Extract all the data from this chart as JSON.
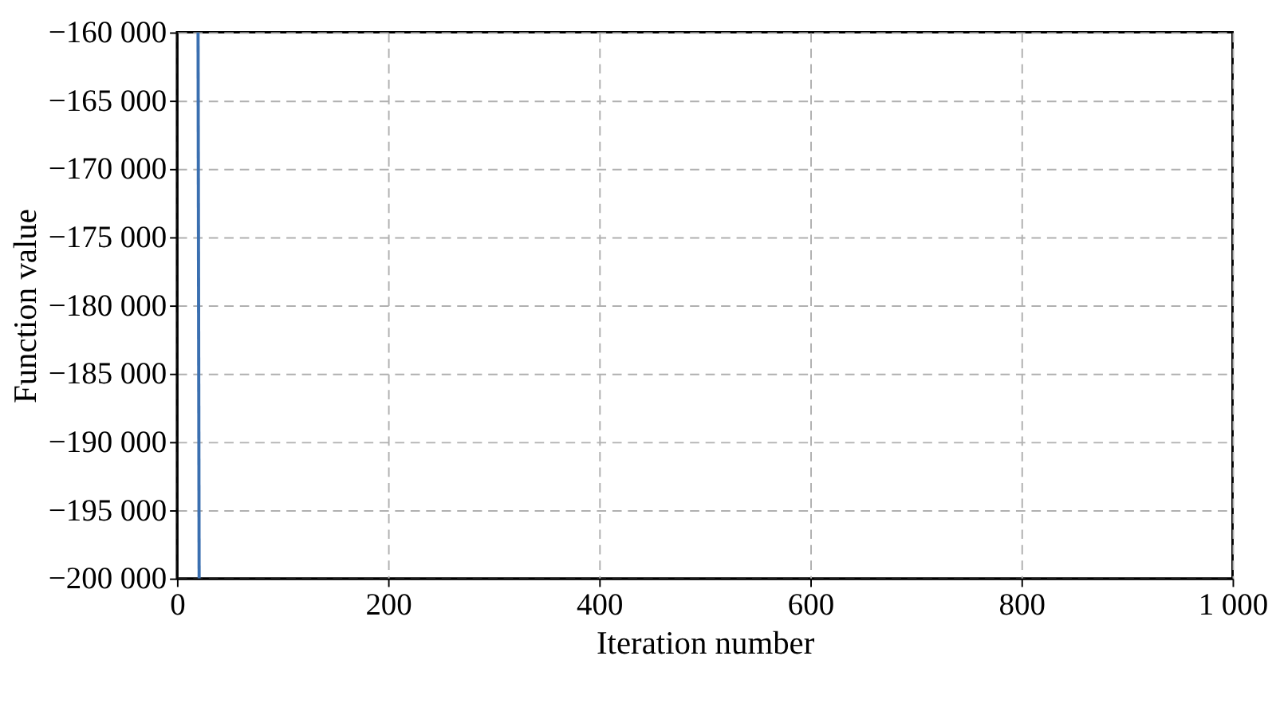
{
  "chart_data": {
    "type": "line",
    "xlabel": "Iteration number",
    "ylabel": "Function value",
    "series": [
      {
        "color": "#3a6fb0",
        "x": [
          20,
          21
        ],
        "values": [
          -160000,
          -200000
        ]
      }
    ],
    "xlim": [
      0,
      1000
    ],
    "xticks": [
      0,
      200,
      400,
      600,
      800,
      {
        "value": 1000,
        "label": "1 000"
      }
    ],
    "ylim": [
      -200000,
      -160000
    ],
    "yticks": [
      {
        "value": -200000,
        "label": "−200 000"
      },
      {
        "value": -195000,
        "label": "−195 000"
      },
      {
        "value": -190000,
        "label": "−190 000"
      },
      {
        "value": -185000,
        "label": "−185 000"
      },
      {
        "value": -180000,
        "label": "−180 000"
      },
      {
        "value": -175000,
        "label": "−175 000"
      },
      {
        "value": -170000,
        "label": "−170 000"
      },
      {
        "value": -165000,
        "label": "−165 000"
      },
      {
        "value": -160000,
        "label": "−160 000"
      }
    ],
    "grid": true,
    "marker": "none",
    "line_style": "solid",
    "legend": false
  }
}
